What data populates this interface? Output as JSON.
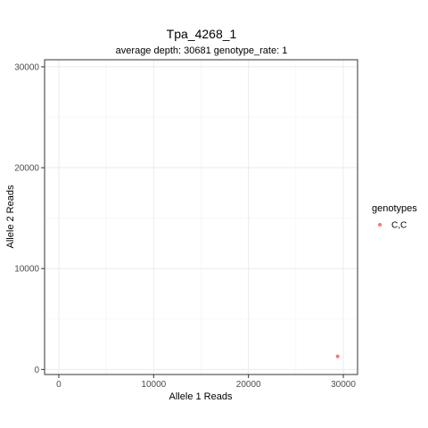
{
  "chart_data": {
    "type": "scatter",
    "title": "Tpa_4268_1",
    "subtitle": "average depth:  30681  genotype_rate:  1",
    "xlabel": "Allele 1 Reads",
    "ylabel": "Allele 2 Reads",
    "xlim": [
      -1500,
      31500
    ],
    "ylim": [
      -500,
      30700
    ],
    "x_ticks": [
      0,
      10000,
      20000,
      30000
    ],
    "y_ticks": [
      0,
      10000,
      20000,
      30000
    ],
    "grid": true,
    "legend": {
      "title": "genotypes",
      "placement": "right"
    },
    "series": [
      {
        "name": "C,C",
        "color": "#F8766D",
        "points": [
          {
            "x": 29400,
            "y": 1300
          }
        ]
      }
    ]
  }
}
